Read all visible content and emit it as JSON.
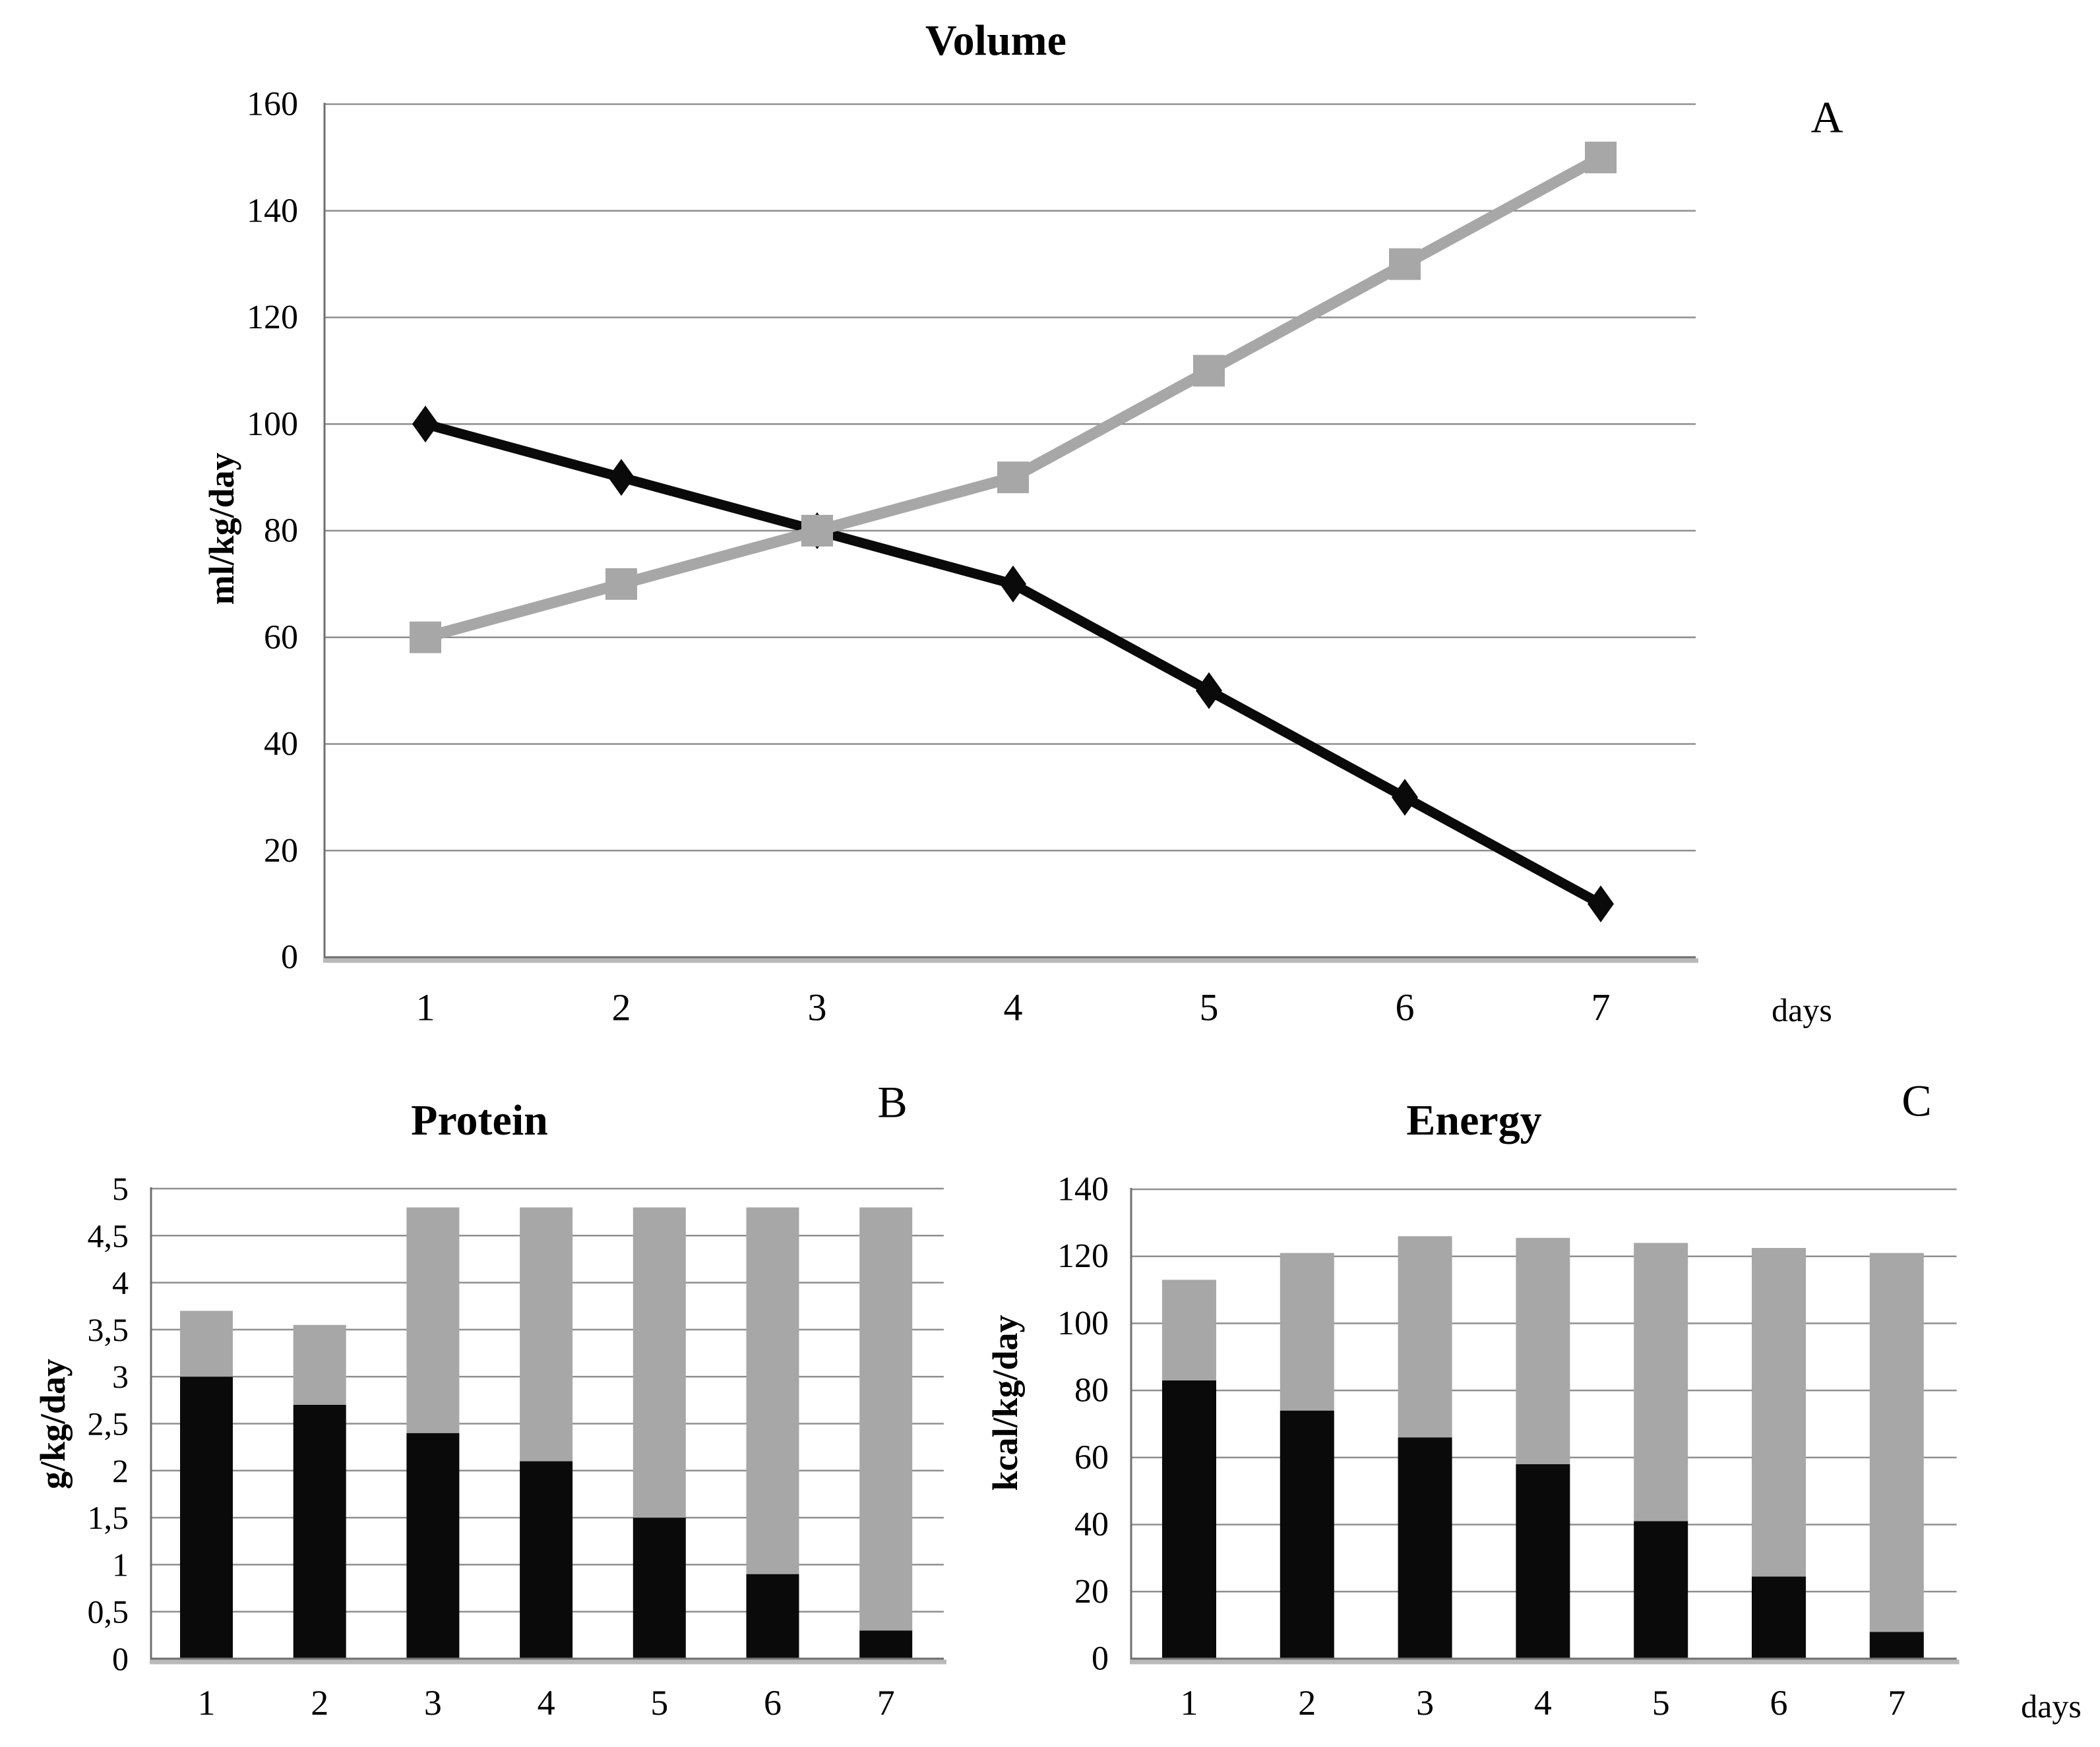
{
  "page": {
    "background_color": "#ffffff",
    "figure_description": "Three-panel nutrition figure: line chart A (Volume) and stacked bar charts B (Protein) and C (Energy) over 7 days"
  },
  "colors": {
    "series_black": "#0a0a0a",
    "series_gray": "#a7a7a7",
    "gridline": "#8f8f8f",
    "axis_line": "#6f6f6f",
    "axis_band": "#b9b9b9"
  },
  "chart_data": [
    {
      "id": "volume",
      "type": "line",
      "title": "Volume",
      "panel_label": "A",
      "ylabel": "ml/kg/day",
      "xlabel": "days",
      "x_categories": [
        "1",
        "2",
        "3",
        "4",
        "5",
        "6",
        "7"
      ],
      "ylim": [
        0,
        160
      ],
      "ytick_values": [
        0,
        20,
        40,
        60,
        80,
        100,
        120,
        140,
        160
      ],
      "ytick_labels": [
        "0",
        "20",
        "40",
        "60",
        "80",
        "100",
        "120",
        "140",
        "160"
      ],
      "grid": true,
      "legend_position": "none",
      "series": [
        {
          "name": "decreasing-black-diamond",
          "color": "#0a0a0a",
          "marker": "diamond",
          "values": [
            100,
            90,
            80,
            70,
            50,
            30,
            10
          ]
        },
        {
          "name": "increasing-gray-square",
          "color": "#a7a7a7",
          "marker": "square",
          "values": [
            60,
            70,
            80,
            90,
            110,
            130,
            150
          ]
        }
      ]
    },
    {
      "id": "protein",
      "type": "bar",
      "stacked": true,
      "title": "Protein",
      "panel_label": "B",
      "ylabel": "g/kg/day",
      "xlabel": "",
      "x_categories": [
        "1",
        "2",
        "3",
        "4",
        "5",
        "6",
        "7"
      ],
      "ylim": [
        0,
        5
      ],
      "ytick_values": [
        0,
        0.5,
        1,
        1.5,
        2,
        2.5,
        3,
        3.5,
        4,
        4.5,
        5
      ],
      "ytick_labels": [
        "0",
        "0,5",
        "1",
        "1,5",
        "2",
        "2,5",
        "3",
        "3,5",
        "4",
        "4,5",
        "5"
      ],
      "grid": true,
      "legend_position": "none",
      "series": [
        {
          "name": "black-bottom-segment",
          "color": "#0a0a0a",
          "values": [
            3.0,
            2.7,
            2.4,
            2.1,
            1.5,
            0.9,
            0.3
          ]
        },
        {
          "name": "gray-top-segment",
          "color": "#a7a7a7",
          "values": [
            0.7,
            0.85,
            2.4,
            2.7,
            3.3,
            3.9,
            4.5
          ]
        }
      ],
      "stack_totals": [
        3.7,
        3.55,
        4.8,
        4.8,
        4.8,
        4.8,
        4.8
      ]
    },
    {
      "id": "energy",
      "type": "bar",
      "stacked": true,
      "title": "Energy",
      "panel_label": "C",
      "ylabel": "kcal/kg/day",
      "xlabel": "days",
      "x_categories": [
        "1",
        "2",
        "3",
        "4",
        "5",
        "6",
        "7"
      ],
      "ylim": [
        0,
        140
      ],
      "ytick_values": [
        0,
        20,
        40,
        60,
        80,
        100,
        120,
        140
      ],
      "ytick_labels": [
        "0",
        "20",
        "40",
        "60",
        "80",
        "100",
        "120",
        "140"
      ],
      "grid": true,
      "legend_position": "none",
      "series": [
        {
          "name": "black-bottom-segment",
          "color": "#0a0a0a",
          "values": [
            83,
            74,
            66,
            58,
            41,
            24.5,
            8
          ]
        },
        {
          "name": "gray-top-segment",
          "color": "#a7a7a7",
          "values": [
            30,
            47,
            60,
            67.5,
            83,
            98,
            113
          ]
        }
      ],
      "stack_totals": [
        113,
        121,
        126,
        125.5,
        124,
        122.5,
        121
      ]
    }
  ]
}
